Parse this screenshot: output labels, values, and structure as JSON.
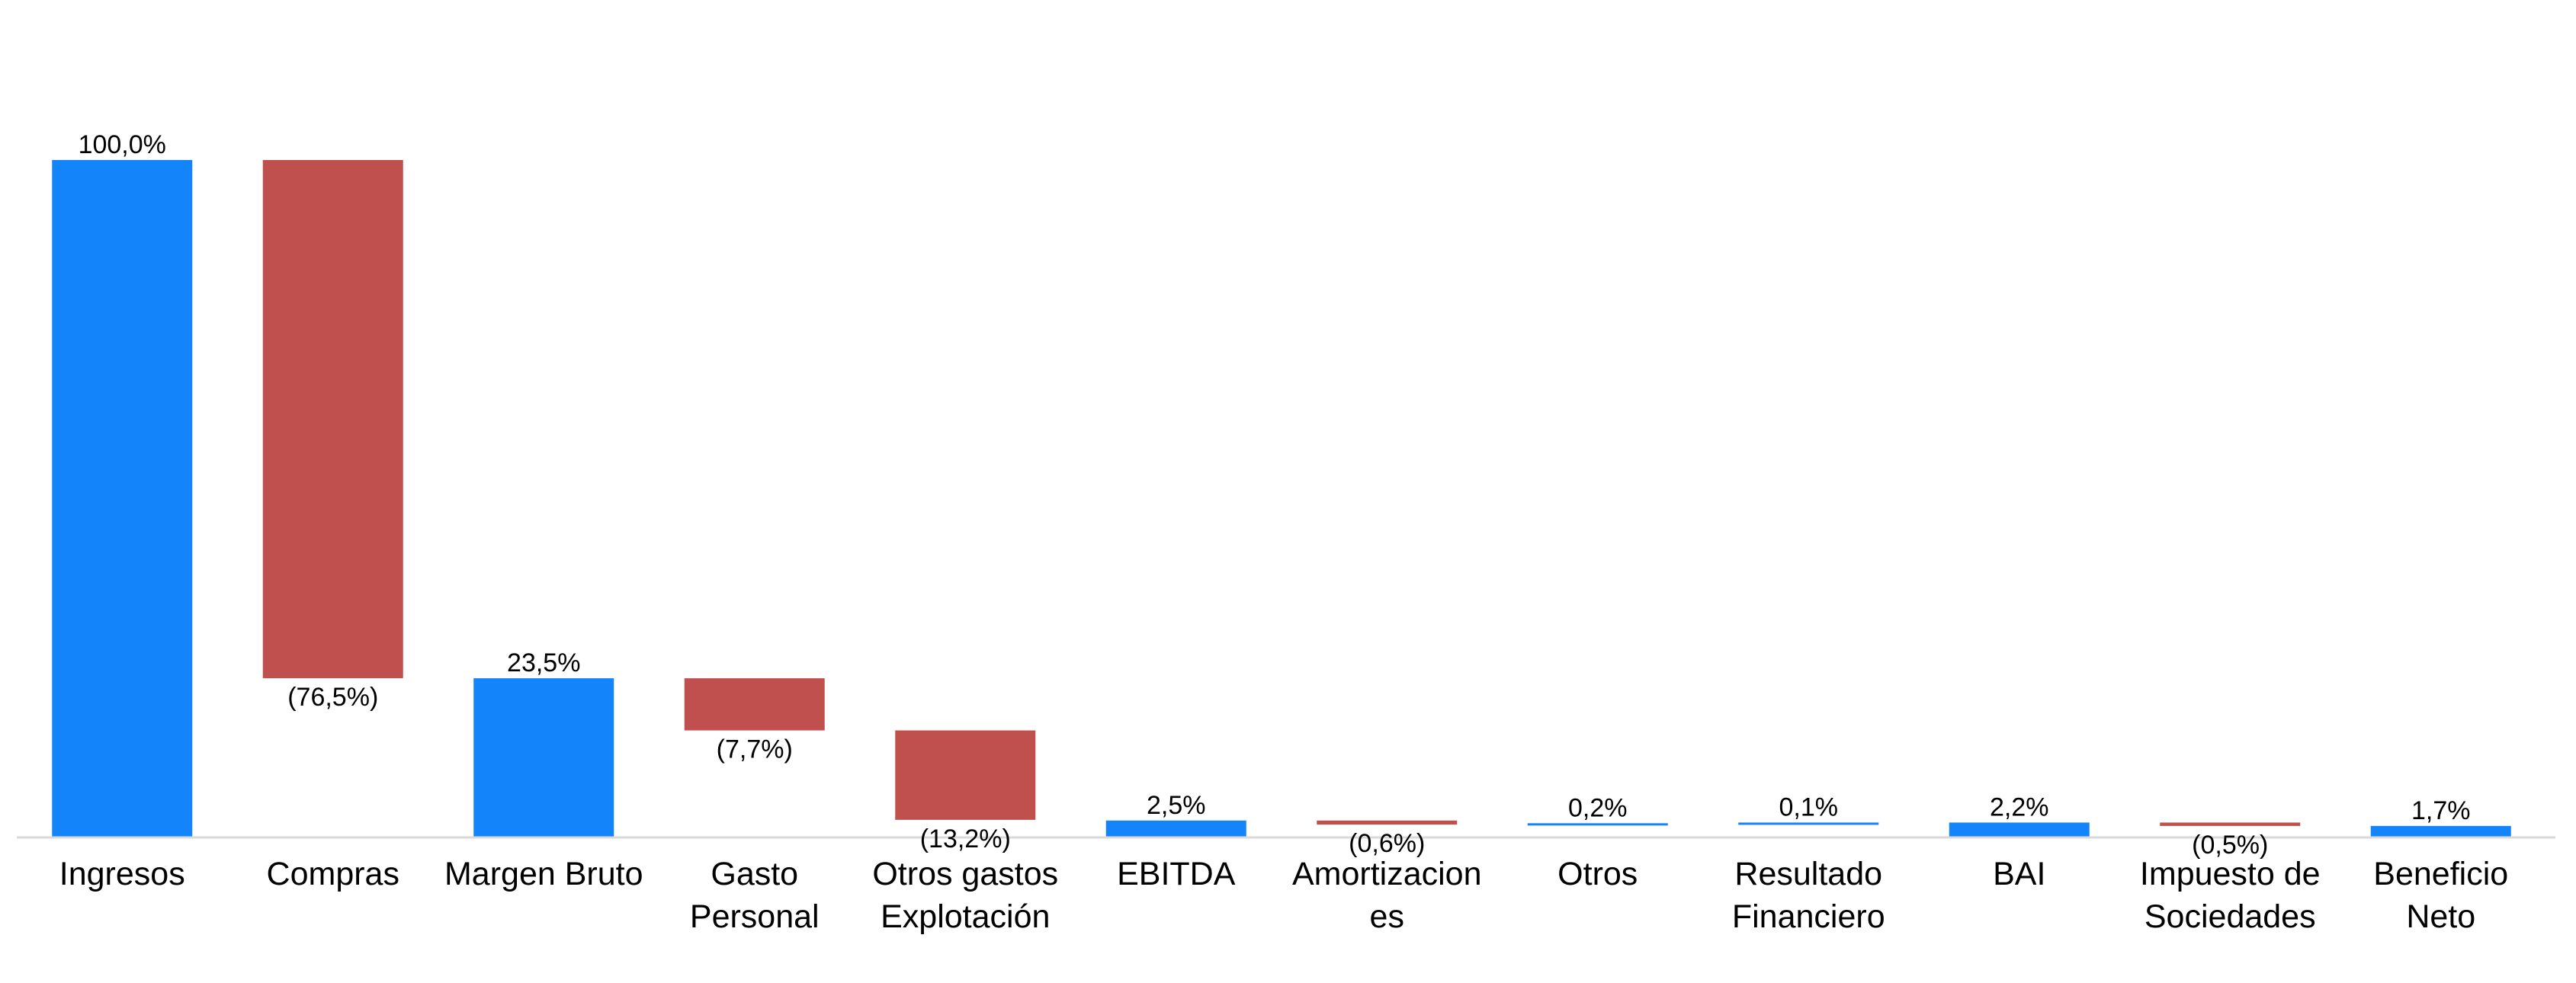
{
  "chart_data": {
    "type": "bar",
    "subtype": "waterfall",
    "title": "",
    "xlabel": "",
    "ylabel": "",
    "ylim": [
      0,
      100
    ],
    "grid": false,
    "legend": "none",
    "colors": {
      "total": "#1484FB",
      "negative": "#C0504D",
      "positive": "#1484FB"
    },
    "categories": [
      "Ingresos",
      "Compras",
      "Margen Bruto",
      "Gasto Personal",
      "Otros gastos Explotación",
      "EBITDA",
      "Amortizaciones",
      "Otros",
      "Resultado Financiero",
      "BAI",
      "Impuesto de Sociedades",
      "Beneficio Neto"
    ],
    "category_lines": [
      [
        "Ingresos"
      ],
      [
        "Compras"
      ],
      [
        "Margen Bruto"
      ],
      [
        "Gasto",
        "Personal"
      ],
      [
        "Otros gastos",
        "Explotación"
      ],
      [
        "EBITDA"
      ],
      [
        "Amortizacion",
        "es"
      ],
      [
        "Otros"
      ],
      [
        "Resultado",
        "Financiero"
      ],
      [
        "BAI"
      ],
      [
        "Impuesto de",
        "Sociedades"
      ],
      [
        "Beneficio",
        "Neto"
      ]
    ],
    "values": [
      100.0,
      -76.5,
      23.5,
      -7.7,
      -13.2,
      2.5,
      -0.6,
      0.2,
      0.1,
      2.2,
      -0.5,
      1.7
    ],
    "kinds": [
      "total",
      "negative",
      "total",
      "negative",
      "negative",
      "total",
      "negative",
      "positive",
      "positive",
      "total",
      "negative",
      "total"
    ],
    "data_labels": [
      "100,0%",
      "(76,5%)",
      "23,5%",
      "(7,7%)",
      "(13,2%)",
      "2,5%",
      "(0,6%)",
      "0,2%",
      "0,1%",
      "2,2%",
      "(0,5%)",
      "1,7%"
    ]
  }
}
